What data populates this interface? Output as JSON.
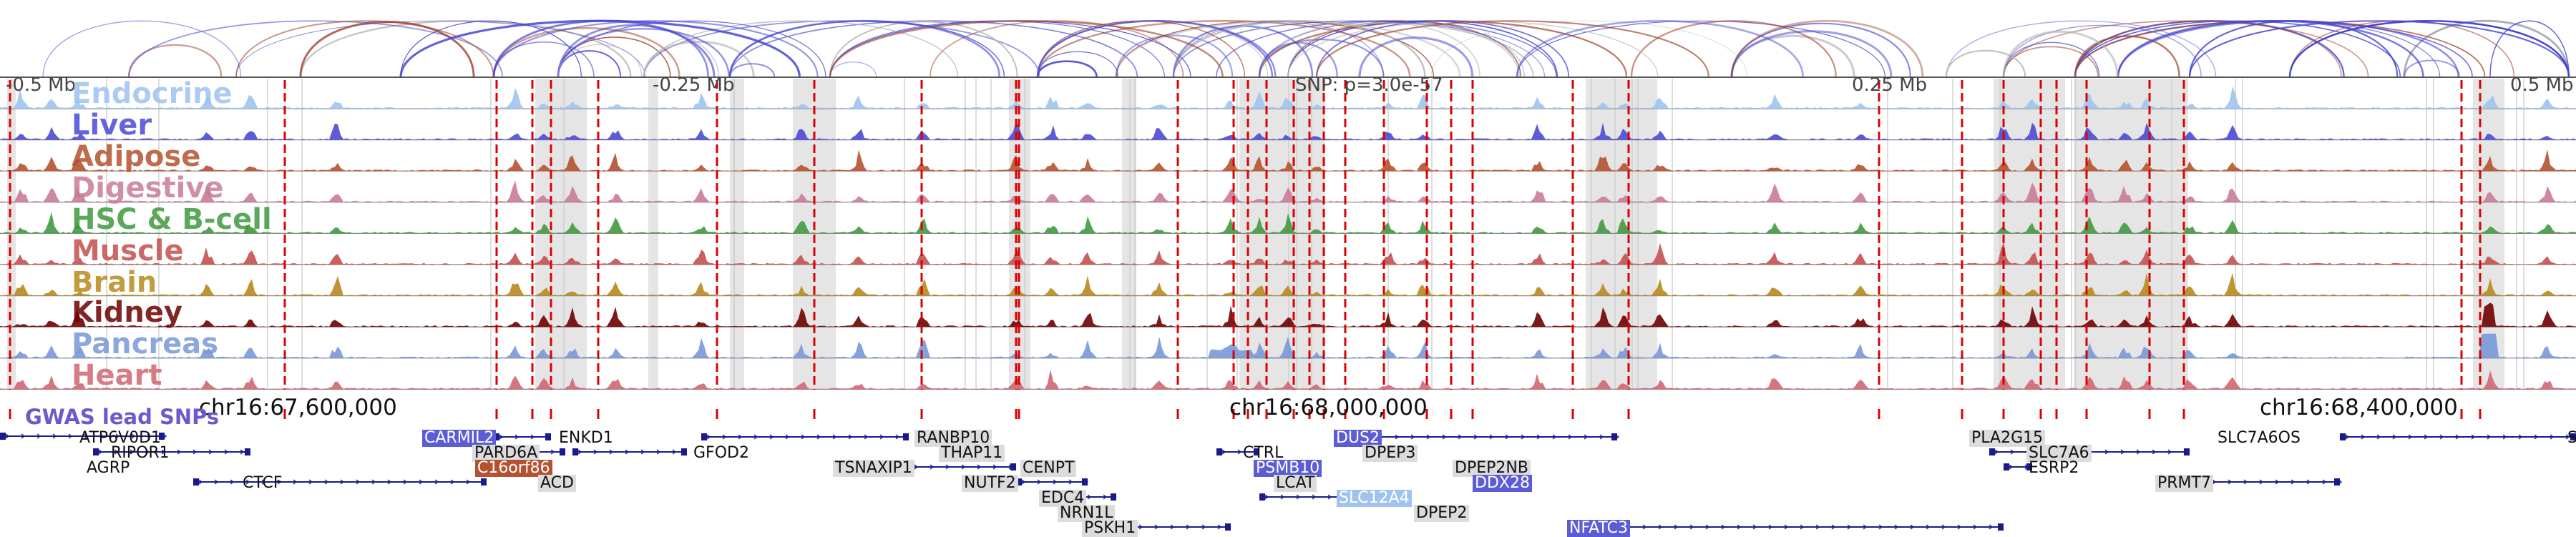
{
  "tracks": [
    {
      "name": "Endocrine",
      "color": "#9fc3ee"
    },
    {
      "name": "Liver",
      "color": "#4a4ad6"
    },
    {
      "name": "Adipose",
      "color": "#b5522f"
    },
    {
      "name": "Digestive",
      "color": "#c97b98"
    },
    {
      "name": "HSC & B-cell",
      "color": "#3f9a3f"
    },
    {
      "name": "Muscle",
      "color": "#c2504f"
    },
    {
      "name": "Brain",
      "color": "#b88a1e"
    },
    {
      "name": "Kidney",
      "color": "#6e0000"
    },
    {
      "name": "Pancreas",
      "color": "#7898d8"
    },
    {
      "name": "Heart",
      "color": "#d06672"
    }
  ],
  "axis": {
    "tick_left": "-0.5 Mb",
    "tick_mid_left": "-0.25 Mb",
    "snp": "SNP: p=3.0e-57",
    "tick_mid_right": "0.25 Mb",
    "tick_right": "0.5 Mb"
  },
  "coordinates": {
    "left": "chr16:67,600,000",
    "mid": "chr16:68,000,000",
    "right": "chr16:68,400,000"
  },
  "snp_track_label": "GWAS lead SNPs",
  "genes": [
    {
      "name": "ATP6V0D1",
      "style": "plain"
    },
    {
      "name": "RIPOR1",
      "style": "plain"
    },
    {
      "name": "AGRP",
      "style": "plain"
    },
    {
      "name": "CTCF",
      "style": "plain"
    },
    {
      "name": "CARMIL2",
      "style": "blue"
    },
    {
      "name": "PARD6A",
      "style": "box"
    },
    {
      "name": "C16orf86",
      "style": "brown"
    },
    {
      "name": "ACD",
      "style": "box"
    },
    {
      "name": "ENKD1",
      "style": "plain"
    },
    {
      "name": "GFOD2",
      "style": "plain"
    },
    {
      "name": "RANBP10",
      "style": "box"
    },
    {
      "name": "THAP11",
      "style": "box"
    },
    {
      "name": "TSNAXIP1",
      "style": "box"
    },
    {
      "name": "CENPT",
      "style": "box"
    },
    {
      "name": "NUTF2",
      "style": "box"
    },
    {
      "name": "EDC4",
      "style": "box"
    },
    {
      "name": "NRN1L",
      "style": "box"
    },
    {
      "name": "PSKH1",
      "style": "box"
    },
    {
      "name": "CTRL",
      "style": "plain"
    },
    {
      "name": "PSMB10",
      "style": "blue"
    },
    {
      "name": "LCAT",
      "style": "box"
    },
    {
      "name": "SLC12A4",
      "style": "lightblue"
    },
    {
      "name": "DUS2",
      "style": "blue"
    },
    {
      "name": "DPEP3",
      "style": "box"
    },
    {
      "name": "DPEP2NB",
      "style": "box"
    },
    {
      "name": "DDX28",
      "style": "blue"
    },
    {
      "name": "DPEP2",
      "style": "box"
    },
    {
      "name": "NFATC3",
      "style": "blue"
    },
    {
      "name": "PLA2G15",
      "style": "box"
    },
    {
      "name": "SLC7A6",
      "style": "box"
    },
    {
      "name": "ESRP2",
      "style": "plain"
    },
    {
      "name": "SLC7A6OS",
      "style": "plain"
    },
    {
      "name": "PRMT7",
      "style": "box"
    },
    {
      "name": "S",
      "style": "plain"
    }
  ],
  "colors": {
    "loop_blue": "#4646d2",
    "loop_brown": "#a0452d",
    "loop_gray": "#b4b4b4",
    "snp_marker": "#dd0000",
    "highlight": "#d0d0d0",
    "gene_line": "#1a1a8c"
  }
}
